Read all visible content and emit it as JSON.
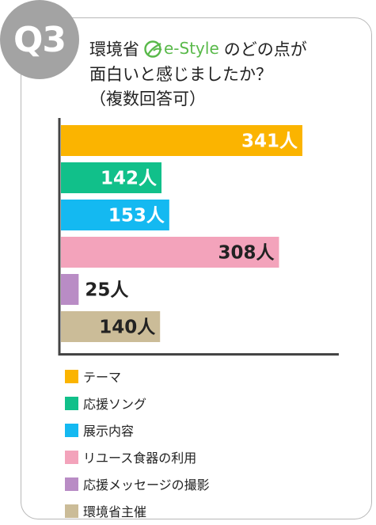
{
  "header": {
    "badge": "Q3",
    "title_pre": "環境省",
    "brand_text": "e-Style",
    "title_post": "のどの点が",
    "title_line2": "面白いと感じましたか？",
    "title_line3": "（複数回答可）",
    "brand_icon": "re-style-logo-icon"
  },
  "chart_data": {
    "type": "bar",
    "orientation": "horizontal",
    "categories": [
      "テーマ",
      "応援ソング",
      "展示内容",
      "リユース食器の利用",
      "応援メッセージの撮影",
      "環境省主催"
    ],
    "values": [
      341,
      142,
      153,
      308,
      25,
      140
    ],
    "labels": [
      "341人",
      "142人",
      "153人",
      "308人",
      "25人",
      "140人"
    ],
    "colors": [
      "#fbb400",
      "#11c08a",
      "#14b9f1",
      "#f3a3bb",
      "#b98cc5",
      "#cbbc98"
    ],
    "label_colors": [
      "#ffffff",
      "#ffffff",
      "#ffffff",
      "#222222",
      "#222222",
      "#222222"
    ],
    "xlim": [
      0,
      400
    ],
    "grid": false,
    "legend_placement": "bottom-left"
  }
}
